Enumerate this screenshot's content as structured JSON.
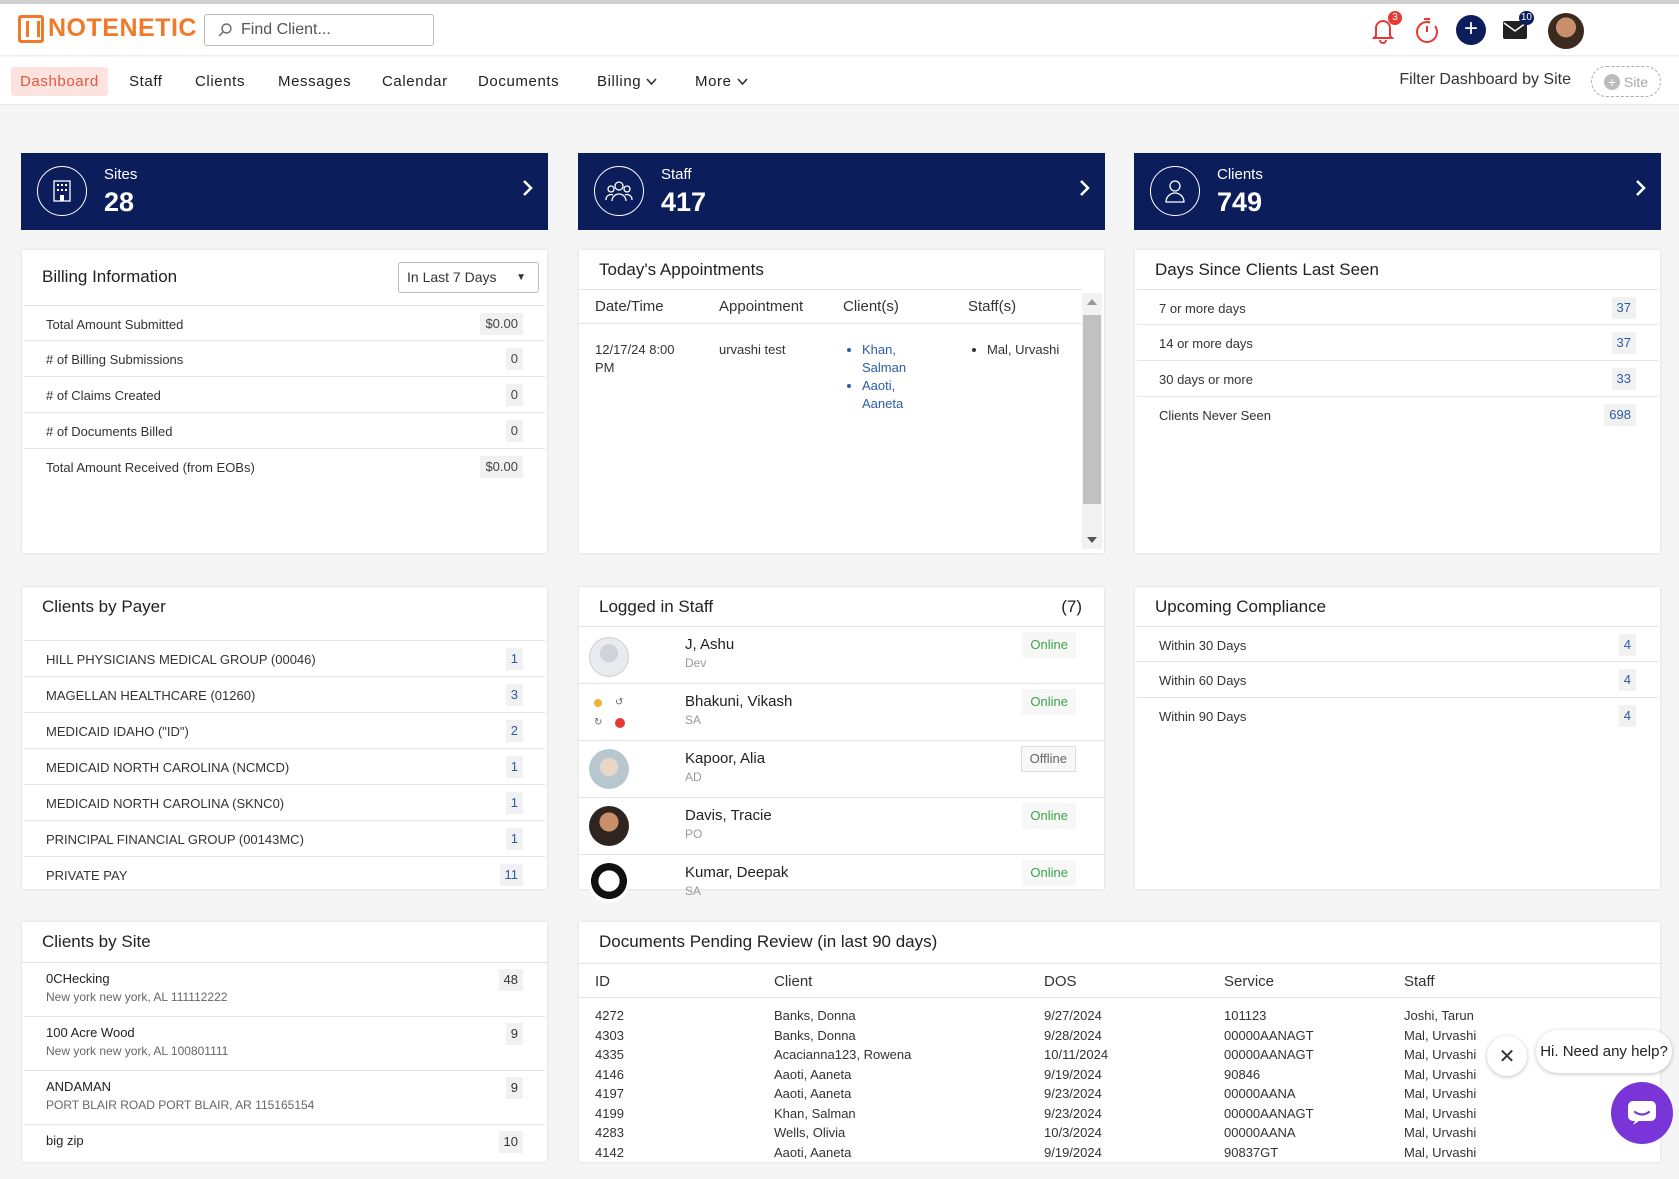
{
  "header": {
    "logo_text": "NOTENETIC",
    "search_placeholder": "Find Client...",
    "notifications_count": "3",
    "messages_count": "10"
  },
  "nav": {
    "items": [
      "Dashboard",
      "Staff",
      "Clients",
      "Messages",
      "Calendar",
      "Documents",
      "Billing",
      "More"
    ],
    "filter_label": "Filter Dashboard by Site",
    "site_button": "Site"
  },
  "stats": [
    {
      "label": "Sites",
      "value": "28"
    },
    {
      "label": "Staff",
      "value": "417"
    },
    {
      "label": "Clients",
      "value": "749"
    }
  ],
  "billing": {
    "title": "Billing Information",
    "range": "In Last 7 Days",
    "rows": [
      {
        "label": "Total Amount Submitted",
        "value": "$0.00"
      },
      {
        "label": "# of Billing Submissions",
        "value": "0"
      },
      {
        "label": "# of Claims Created",
        "value": "0"
      },
      {
        "label": "# of Documents Billed",
        "value": "0"
      },
      {
        "label": "Total Amount Received (from EOBs)",
        "value": "$0.00"
      }
    ]
  },
  "appointments": {
    "title": "Today's Appointments",
    "columns": [
      "Date/Time",
      "Appointment",
      "Client(s)",
      "Staff(s)"
    ],
    "rows": [
      {
        "datetime": "12/17/24 8:00 PM",
        "appointment": "urvashi test",
        "clients": [
          "Khan, Salman",
          "Aaoti, Aaneta"
        ],
        "staff": [
          "Mal, Urvashi"
        ]
      }
    ]
  },
  "days_since": {
    "title": "Days Since Clients Last Seen",
    "rows": [
      {
        "label": "7 or more days",
        "value": "37"
      },
      {
        "label": "14 or more days",
        "value": "37"
      },
      {
        "label": "30 days or more",
        "value": "33"
      },
      {
        "label": "Clients Never Seen",
        "value": "698"
      }
    ]
  },
  "payer": {
    "title": "Clients by Payer",
    "rows": [
      {
        "label": "HILL PHYSICIANS MEDICAL GROUP (00046)",
        "value": "1"
      },
      {
        "label": "MAGELLAN HEALTHCARE (01260)",
        "value": "3"
      },
      {
        "label": "MEDICAID IDAHO (\"ID\")",
        "value": "2"
      },
      {
        "label": "MEDICAID NORTH CAROLINA (NCMCD)",
        "value": "1"
      },
      {
        "label": "MEDICAID NORTH CAROLINA (SKNC0)",
        "value": "1"
      },
      {
        "label": "PRINCIPAL FINANCIAL GROUP (00143MC)",
        "value": "1"
      },
      {
        "label": "PRIVATE PAY",
        "value": "11"
      }
    ]
  },
  "logged_staff": {
    "title": "Logged in Staff",
    "count": "(7)",
    "rows": [
      {
        "name": "J, Ashu",
        "role": "Dev",
        "status": "Online"
      },
      {
        "name": "Bhakuni, Vikash",
        "role": "SA",
        "status": "Online"
      },
      {
        "name": "Kapoor, Alia",
        "role": "AD",
        "status": "Offline"
      },
      {
        "name": "Davis, Tracie",
        "role": "PO",
        "status": "Online"
      },
      {
        "name": "Kumar, Deepak",
        "role": "SA",
        "status": "Online"
      }
    ]
  },
  "compliance": {
    "title": "Upcoming Compliance",
    "rows": [
      {
        "label": "Within 30 Days",
        "value": "4"
      },
      {
        "label": "Within 60 Days",
        "value": "4"
      },
      {
        "label": "Within 90 Days",
        "value": "4"
      }
    ]
  },
  "sites": {
    "title": "Clients by Site",
    "rows": [
      {
        "name": "0CHecking",
        "address": "New york new york, AL 111112222",
        "value": "48"
      },
      {
        "name": "100 Acre Wood",
        "address": "New york new york, AL 100801111",
        "value": "9"
      },
      {
        "name": "ANDAMAN",
        "address": "PORT BLAIR ROAD PORT BLAIR, AR 115165154",
        "value": "9"
      },
      {
        "name": "big zip",
        "address": "",
        "value": "10"
      }
    ]
  },
  "documents": {
    "title": "Documents Pending Review (in last 90 days)",
    "columns": [
      "ID",
      "Client",
      "DOS",
      "Service",
      "Staff"
    ],
    "rows": [
      [
        "4272",
        "Banks, Donna",
        "9/27/2024",
        "101123",
        "Joshi, Tarun"
      ],
      [
        "4303",
        "Banks, Donna",
        "9/28/2024",
        "00000AANAGT",
        "Mal, Urvashi"
      ],
      [
        "4335",
        "Acacianna123, Rowena",
        "10/11/2024",
        "00000AANAGT",
        "Mal, Urvashi"
      ],
      [
        "4146",
        "Aaoti, Aaneta",
        "9/19/2024",
        "90846",
        "Mal, Urvashi"
      ],
      [
        "4197",
        "Aaoti, Aaneta",
        "9/23/2024",
        "00000AANA",
        "Mal, Urvashi"
      ],
      [
        "4199",
        "Khan, Salman",
        "9/23/2024",
        "00000AANAGT",
        "Mal, Urvashi"
      ],
      [
        "4283",
        "Wells, Olivia",
        "10/3/2024",
        "00000AANA",
        "Mal, Urvashi"
      ],
      [
        "4142",
        "Aaoti, Aaneta",
        "9/19/2024",
        "90837GT",
        "Mal, Urvashi"
      ]
    ]
  },
  "chat": {
    "message": "Hi. Need any help?"
  },
  "colors": {
    "navy": "#0b1e5b",
    "accent": "#f07a2a",
    "active_nav": "#e4563a",
    "online": "#3aa64a",
    "link": "#2d5ca8",
    "chat": "#7a35d8"
  }
}
